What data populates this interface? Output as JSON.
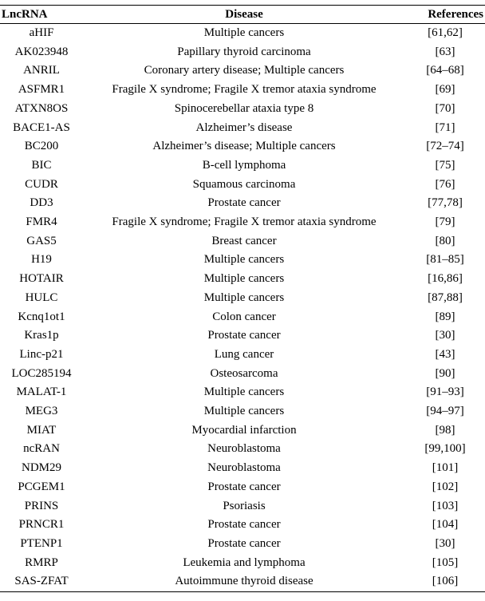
{
  "table": {
    "headers": [
      "LncRNA",
      "Disease",
      "References"
    ],
    "rows": [
      [
        "aHIF",
        "Multiple cancers",
        "[61,62]"
      ],
      [
        "AK023948",
        "Papillary thyroid carcinoma",
        "[63]"
      ],
      [
        "ANRIL",
        "Coronary artery disease; Multiple cancers",
        "[64–68]"
      ],
      [
        "ASFMR1",
        "Fragile X syndrome; Fragile X tremor ataxia syndrome",
        "[69]"
      ],
      [
        "ATXN8OS",
        "Spinocerebellar ataxia type 8",
        "[70]"
      ],
      [
        "BACE1-AS",
        "Alzheimer’s disease",
        "[71]"
      ],
      [
        "BC200",
        "Alzheimer’s disease; Multiple cancers",
        "[72–74]"
      ],
      [
        "BIC",
        "B-cell lymphoma",
        "[75]"
      ],
      [
        "CUDR",
        "Squamous carcinoma",
        "[76]"
      ],
      [
        "DD3",
        "Prostate cancer",
        "[77,78]"
      ],
      [
        "FMR4",
        "Fragile X syndrome; Fragile X tremor ataxia syndrome",
        "[79]"
      ],
      [
        "GAS5",
        "Breast cancer",
        "[80]"
      ],
      [
        "H19",
        "Multiple cancers",
        "[81–85]"
      ],
      [
        "HOTAIR",
        "Multiple cancers",
        "[16,86]"
      ],
      [
        "HULC",
        "Multiple cancers",
        "[87,88]"
      ],
      [
        "Kcnq1ot1",
        "Colon cancer",
        "[89]"
      ],
      [
        "Kras1p",
        "Prostate cancer",
        "[30]"
      ],
      [
        "Linc-p21",
        "Lung cancer",
        "[43]"
      ],
      [
        "LOC285194",
        "Osteosarcoma",
        "[90]"
      ],
      [
        "MALAT-1",
        "Multiple cancers",
        "[91–93]"
      ],
      [
        "MEG3",
        "Multiple cancers",
        "[94–97]"
      ],
      [
        "MIAT",
        "Myocardial infarction",
        "[98]"
      ],
      [
        "ncRAN",
        "Neuroblastoma",
        "[99,100]"
      ],
      [
        "NDM29",
        "Neuroblastoma",
        "[101]"
      ],
      [
        "PCGEM1",
        "Prostate cancer",
        "[102]"
      ],
      [
        "PRINS",
        "Psoriasis",
        "[103]"
      ],
      [
        "PRNCR1",
        "Prostate cancer",
        "[104]"
      ],
      [
        "PTENP1",
        "Prostate cancer",
        "[30]"
      ],
      [
        "RMRP",
        "Leukemia and lymphoma",
        "[105]"
      ],
      [
        "SAS-ZFAT",
        "Autoimmune thyroid disease",
        "[106]"
      ]
    ]
  }
}
